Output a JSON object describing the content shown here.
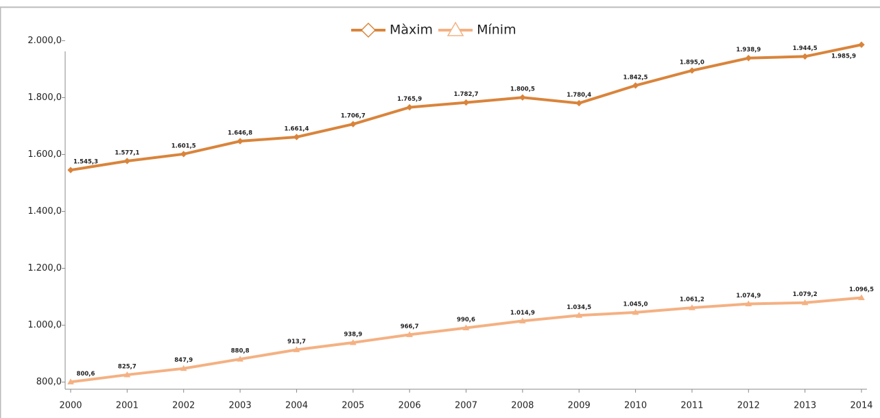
{
  "chart_data": {
    "type": "line",
    "categories": [
      "2000",
      "2001",
      "2002",
      "2003",
      "2004",
      "2005",
      "2006",
      "2007",
      "2008",
      "2009",
      "2010",
      "2011",
      "2012",
      "2013",
      "2014"
    ],
    "series": [
      {
        "name": "Màxim",
        "color": "#d9843b",
        "marker": "diamond",
        "values": [
          1545.3,
          1577.1,
          1601.5,
          1646.8,
          1661.4,
          1706.7,
          1765.9,
          1782.7,
          1800.5,
          1780.4,
          1842.5,
          1895.0,
          1938.9,
          1944.5,
          1985.9
        ],
        "value_labels": [
          "1.545,3",
          "1.577,1",
          "1.601,5",
          "1.646,8",
          "1.661,4",
          "1.706,7",
          "1.765,9",
          "1.782,7",
          "1.800,5",
          "1.780,4",
          "1.842,5",
          "1.895,0",
          "1.938,9",
          "1.944,5",
          "1.985,9"
        ]
      },
      {
        "name": "Mínim",
        "color": "#f4b183",
        "marker": "triangle",
        "values": [
          800.6,
          825.7,
          847.9,
          880.8,
          913.7,
          938.9,
          966.7,
          990.6,
          1014.9,
          1034.5,
          1045.0,
          1061.2,
          1074.9,
          1079.2,
          1096.5
        ],
        "value_labels": [
          "800,6",
          "825,7",
          "847,9",
          "880,8",
          "913,7",
          "938,9",
          "966,7",
          "990,6",
          "1.014,9",
          "1.034,5",
          "1.045,0",
          "1.061,2",
          "1.074,9",
          "1.079,2",
          "1.096,5"
        ]
      }
    ],
    "ylim": [
      775,
      2025
    ],
    "yticks": [
      {
        "value": 800,
        "label": "800,0"
      },
      {
        "value": 1000,
        "label": "1.000,0"
      },
      {
        "value": 1200,
        "label": "1.200,0"
      },
      {
        "value": 1400,
        "label": "1.400,0"
      },
      {
        "value": 1600,
        "label": "1.600,0"
      },
      {
        "value": 1800,
        "label": "1.800,0"
      },
      {
        "value": 2000,
        "label": "2.000,0"
      }
    ],
    "grid": false,
    "legend": "top"
  }
}
